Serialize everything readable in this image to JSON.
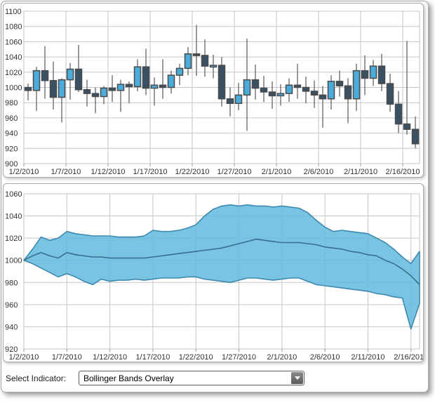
{
  "controls": {
    "label": "Select Indicator:",
    "value": "Bollinger Bands Overlay"
  },
  "colors": {
    "up": "#49ACD9",
    "down": "#3A5063",
    "candle_stroke": "#4b4b4d",
    "wick": "#6f6f6f",
    "grid": "#c6c6c6",
    "axis_text": "#333333",
    "band_fill": "#62B9DE",
    "band_edge": "#3E8AAE",
    "band_mid": "#3A6F8E"
  },
  "chart_data": [
    {
      "type": "candlestick",
      "title": "",
      "xlabel": "",
      "ylabel": "",
      "grid": true,
      "ylim": [
        900,
        1100
      ],
      "yticks": [
        1100,
        1080,
        1060,
        1040,
        1020,
        1000,
        980,
        960,
        940,
        920,
        900
      ],
      "x_tick_every": 5,
      "x_tick_labels": [
        "1/2/2010",
        "1/7/2010",
        "1/12/2010",
        "1/17/2010",
        "1/22/2010",
        "1/27/2010",
        "2/1/2010",
        "2/6/2010",
        "2/11/2010",
        "2/16/2010"
      ],
      "dates": [
        "1/2/2010",
        "1/3/2010",
        "1/4/2010",
        "1/5/2010",
        "1/6/2010",
        "1/7/2010",
        "1/8/2010",
        "1/9/2010",
        "1/10/2010",
        "1/11/2010",
        "1/12/2010",
        "1/13/2010",
        "1/14/2010",
        "1/15/2010",
        "1/16/2010",
        "1/17/2010",
        "1/18/2010",
        "1/19/2010",
        "1/20/2010",
        "1/21/2010",
        "1/22/2010",
        "1/23/2010",
        "1/24/2010",
        "1/25/2010",
        "1/26/2010",
        "1/27/2010",
        "1/28/2010",
        "1/29/2010",
        "1/30/2010",
        "1/31/2010",
        "2/1/2010",
        "2/2/2010",
        "2/3/2010",
        "2/4/2010",
        "2/5/2010",
        "2/6/2010",
        "2/7/2010",
        "2/8/2010",
        "2/9/2010",
        "2/10/2010",
        "2/11/2010",
        "2/12/2010",
        "2/13/2010",
        "2/14/2010",
        "2/15/2010",
        "2/16/2010",
        "2/17/2010"
      ],
      "open": [
        1000,
        996,
        1022,
        1009,
        987,
        1010,
        1024,
        997,
        992,
        988,
        999,
        996,
        1004,
        1001,
        1027,
        999,
        1003,
        1000,
        1016,
        1025,
        1044,
        1042,
        1028,
        1029,
        985,
        979,
        990,
        1010,
        999,
        994,
        989,
        992,
        1003,
        1000,
        995,
        990,
        985,
        1008,
        1002,
        985,
        1022,
        1012,
        1028,
        1005,
        978,
        952,
        945
      ],
      "high": [
        1005,
        1027,
        1054,
        1034,
        1012,
        1032,
        1056,
        1010,
        1000,
        1002,
        1016,
        1010,
        1008,
        1037,
        1051,
        1013,
        1037,
        1022,
        1031,
        1053,
        1082,
        1063,
        1043,
        1040,
        1000,
        1006,
        1064,
        1030,
        1015,
        1008,
        1004,
        1012,
        1031,
        1014,
        1009,
        1002,
        1016,
        1022,
        1012,
        1031,
        1042,
        1036,
        1044,
        1018,
        995,
        1061,
        962
      ],
      "low": [
        983,
        969,
        985,
        971,
        954,
        984,
        994,
        975,
        966,
        978,
        981,
        968,
        979,
        995,
        990,
        976,
        985,
        992,
        1003,
        1016,
        1015,
        1014,
        1012,
        975,
        962,
        970,
        943,
        984,
        981,
        972,
        976,
        981,
        985,
        979,
        973,
        947,
        971,
        988,
        953,
        969,
        990,
        1002,
        995,
        968,
        940,
        938,
        920
      ],
      "close": [
        996,
        1022,
        1009,
        987,
        1010,
        1024,
        997,
        992,
        988,
        999,
        996,
        1004,
        1001,
        1027,
        999,
        1003,
        1000,
        1016,
        1025,
        1044,
        1042,
        1028,
        1029,
        985,
        979,
        990,
        1010,
        999,
        994,
        989,
        992,
        1003,
        1000,
        995,
        990,
        985,
        1008,
        1002,
        985,
        1022,
        1012,
        1028,
        1005,
        978,
        952,
        945,
        926
      ]
    },
    {
      "type": "area",
      "name": "Bollinger Bands Overlay",
      "title": "",
      "xlabel": "",
      "ylabel": "",
      "grid": true,
      "ylim": [
        920,
        1060
      ],
      "yticks": [
        1060,
        1040,
        1020,
        1000,
        980,
        960,
        940,
        920
      ],
      "x_tick_every": 5,
      "x_tick_labels": [
        "1/2/2010",
        "1/7/2010",
        "1/12/2010",
        "1/17/2010",
        "1/22/2010",
        "1/27/2010",
        "2/1/2010",
        "2/6/2010",
        "2/11/2010",
        "2/16/2010"
      ],
      "dates": [
        "1/2/2010",
        "1/3/2010",
        "1/4/2010",
        "1/5/2010",
        "1/6/2010",
        "1/7/2010",
        "1/8/2010",
        "1/9/2010",
        "1/10/2010",
        "1/11/2010",
        "1/12/2010",
        "1/13/2010",
        "1/14/2010",
        "1/15/2010",
        "1/16/2010",
        "1/17/2010",
        "1/18/2010",
        "1/19/2010",
        "1/20/2010",
        "1/21/2010",
        "1/22/2010",
        "1/23/2010",
        "1/24/2010",
        "1/25/2010",
        "1/26/2010",
        "1/27/2010",
        "1/28/2010",
        "1/29/2010",
        "1/30/2010",
        "1/31/2010",
        "2/1/2010",
        "2/2/2010",
        "2/3/2010",
        "2/4/2010",
        "2/5/2010",
        "2/6/2010",
        "2/7/2010",
        "2/8/2010",
        "2/9/2010",
        "2/10/2010",
        "2/11/2010",
        "2/12/2010",
        "2/13/2010",
        "2/14/2010",
        "2/15/2010",
        "2/16/2010",
        "2/17/2010"
      ],
      "upper": [
        1000,
        1010,
        1021,
        1018,
        1020,
        1026,
        1024,
        1023,
        1022,
        1022,
        1022,
        1021,
        1021,
        1021,
        1022,
        1027,
        1026,
        1026,
        1027,
        1029,
        1032,
        1040,
        1046,
        1049,
        1050,
        1049,
        1050,
        1049,
        1049,
        1048,
        1049,
        1048,
        1047,
        1043,
        1036,
        1030,
        1026,
        1027,
        1026,
        1025,
        1024,
        1020,
        1016,
        1010,
        1003,
        997,
        1008
      ],
      "middle": [
        1000,
        1004,
        1007,
        1004,
        1002,
        1007,
        1005,
        1004,
        1003,
        1003,
        1002,
        1002,
        1002,
        1002,
        1002,
        1003,
        1004,
        1005,
        1006,
        1007,
        1008,
        1009,
        1010,
        1011,
        1013,
        1015,
        1017,
        1019,
        1018,
        1017,
        1016,
        1016,
        1016,
        1015,
        1014,
        1012,
        1011,
        1010,
        1008,
        1007,
        1005,
        1004,
        1000,
        997,
        992,
        986,
        978
      ],
      "lower": [
        1000,
        997,
        993,
        989,
        985,
        988,
        985,
        981,
        978,
        983,
        981,
        982,
        982,
        983,
        982,
        983,
        984,
        984,
        984,
        985,
        985,
        983,
        982,
        981,
        980,
        982,
        984,
        984,
        983,
        982,
        983,
        984,
        984,
        981,
        978,
        977,
        976,
        975,
        974,
        973,
        972,
        970,
        969,
        967,
        966,
        938,
        961
      ]
    }
  ]
}
